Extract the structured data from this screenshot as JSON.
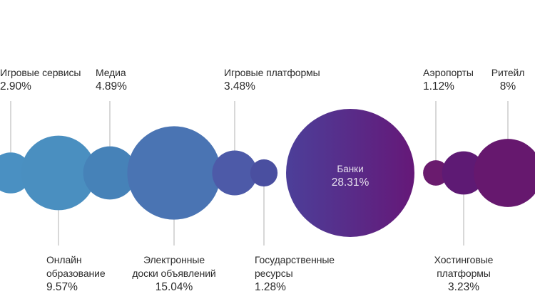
{
  "chart_data": {
    "type": "bubble",
    "title": "",
    "grid": false,
    "legend": "none",
    "categories": [
      "Игровые сервисы",
      "Онлайн образование",
      "Медиа",
      "Электронные доски объявлений",
      "Игровые платформы",
      "Государственные ресурсы",
      "Банки",
      "Аэропорты",
      "Хостинговые платформы",
      "Ритейл"
    ],
    "values": [
      2.9,
      9.57,
      4.89,
      15.04,
      3.48,
      1.28,
      28.31,
      1.12,
      3.23,
      8
    ],
    "items": [
      {
        "name": "Игровые сервисы",
        "name_lines": [
          "Игровые сервисы"
        ],
        "value_label": "2.90%",
        "value": 2.9,
        "color": "#4a90c2"
      },
      {
        "name": "Онлайн образование",
        "name_lines": [
          "Онлайн",
          "образование"
        ],
        "value_label": "9.57%",
        "value": 9.57,
        "color": "#4a8fc0"
      },
      {
        "name": "Медиа",
        "name_lines": [
          "Медиа"
        ],
        "value_label": "4.89%",
        "value": 4.89,
        "color": "#4682b8"
      },
      {
        "name": "Электронные доски объявлений",
        "name_lines": [
          "Электронные",
          "доски объявлений"
        ],
        "value_label": "15.04%",
        "value": 15.04,
        "color": "#4a74b3"
      },
      {
        "name": "Игровые платформы",
        "name_lines": [
          "Игровые платформы"
        ],
        "value_label": "3.48%",
        "value": 3.48,
        "color": "#4d5aa8"
      },
      {
        "name": "Государственные ресурсы",
        "name_lines": [
          "Государственные",
          "ресурсы"
        ],
        "value_label": "1.28%",
        "value": 1.28,
        "color": "#4a4fa0"
      },
      {
        "name": "Банки",
        "name_lines": [
          "Банки"
        ],
        "value_label": "28.31%",
        "value": 28.31,
        "color_from": "#4c3f99",
        "color_to": "#651878"
      },
      {
        "name": "Аэропорты",
        "name_lines": [
          "Аэропорты"
        ],
        "value_label": "1.12%",
        "value": 1.12,
        "color": "#6a1b6e"
      },
      {
        "name": "Хостинговые платформы",
        "name_lines": [
          "Хостинговые",
          "платформы"
        ],
        "value_label": "3.23%",
        "value": 3.23,
        "color": "#5e1a74"
      },
      {
        "name": "Ритейл",
        "name_lines": [
          "Ритейл"
        ],
        "value_label": "8%",
        "value": 8,
        "color": "#66186e"
      }
    ]
  }
}
